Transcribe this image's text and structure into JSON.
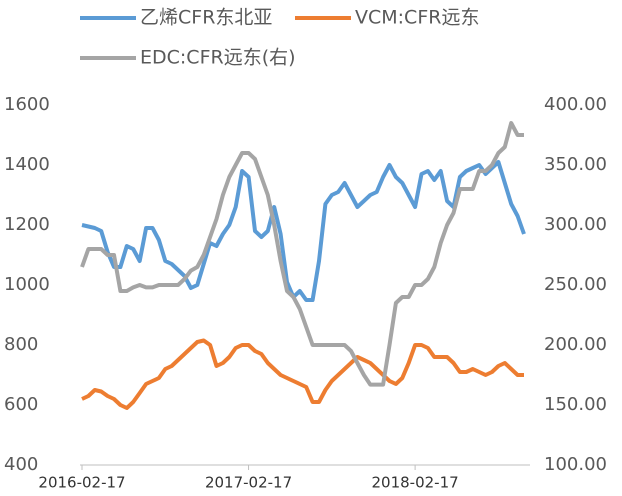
{
  "chart_data": {
    "type": "line",
    "categories": [
      "2016-02-17",
      null,
      null,
      null,
      null,
      null,
      null,
      null,
      null,
      null,
      null,
      null,
      null,
      null,
      null,
      null,
      null,
      null,
      null,
      null,
      null,
      null,
      null,
      null,
      null,
      null,
      "2017-02-17",
      null,
      null,
      null,
      null,
      null,
      null,
      null,
      null,
      null,
      null,
      null,
      null,
      null,
      null,
      null,
      null,
      null,
      null,
      null,
      null,
      null,
      null,
      null,
      null,
      null,
      "2018-02-17",
      null,
      null,
      null,
      null,
      null,
      null,
      null,
      null,
      null,
      null,
      null,
      null,
      null,
      null,
      null,
      null,
      null
    ],
    "series": [
      {
        "name": "乙烯CFR东北亚",
        "color": "#5b9bd5",
        "axis": "y",
        "values": [
          1200,
          1195,
          1190,
          1180,
          1110,
          1060,
          1060,
          1130,
          1120,
          1080,
          1190,
          1190,
          1150,
          1080,
          1070,
          1050,
          1030,
          990,
          1000,
          1070,
          1140,
          1130,
          1170,
          1200,
          1260,
          1380,
          1360,
          1180,
          1160,
          1180,
          1260,
          1170,
          1010,
          960,
          980,
          950,
          950,
          1080,
          1270,
          1300,
          1310,
          1340,
          1300,
          1260,
          1280,
          1300,
          1310,
          1360,
          1400,
          1360,
          1340,
          1300,
          1260,
          1370,
          1380,
          1350,
          1380,
          1280,
          1260,
          1360,
          1380,
          1390,
          1400,
          1370,
          1390,
          1410,
          1340,
          1270,
          1230,
          1170
        ]
      },
      {
        "name": "VCM:CFR远东",
        "color": "#ed7d31",
        "axis": "y",
        "values": [
          620,
          630,
          650,
          645,
          630,
          620,
          600,
          590,
          610,
          640,
          670,
          680,
          690,
          720,
          730,
          750,
          770,
          790,
          810,
          815,
          800,
          730,
          740,
          760,
          790,
          800,
          800,
          780,
          770,
          740,
          720,
          700,
          690,
          680,
          670,
          660,
          610,
          610,
          650,
          680,
          700,
          720,
          740,
          760,
          750,
          740,
          720,
          700,
          680,
          670,
          690,
          740,
          800,
          800,
          790,
          760,
          760,
          760,
          740,
          710,
          710,
          720,
          710,
          700,
          710,
          730,
          740,
          720,
          700,
          700
        ]
      },
      {
        "name": "EDC:CFR远东(右)",
        "color": "#a5a5a5",
        "axis": "y2",
        "values": [
          265,
          280,
          280,
          280,
          275,
          275,
          245,
          245,
          248,
          250,
          248,
          248,
          250,
          250,
          250,
          250,
          255,
          262,
          265,
          275,
          290,
          305,
          325,
          340,
          350,
          360,
          360,
          355,
          340,
          325,
          300,
          270,
          245,
          240,
          230,
          215,
          200,
          200,
          200,
          200,
          200,
          200,
          195,
          185,
          175,
          167,
          167,
          167,
          200,
          235,
          240,
          240,
          250,
          250,
          255,
          265,
          285,
          300,
          310,
          330,
          330,
          330,
          345,
          345,
          350,
          360,
          365,
          385,
          375,
          375
        ]
      }
    ],
    "ylim": [
      400,
      1600
    ],
    "yticks": [
      400,
      600,
      800,
      1000,
      1200,
      1400,
      1600
    ],
    "y2lim": [
      100,
      400
    ],
    "y2ticks": [
      {
        "value": 100,
        "label": "100.00"
      },
      {
        "value": 150,
        "label": "150.00"
      },
      {
        "value": 200,
        "label": "200.00"
      },
      {
        "value": 250,
        "label": "250.00"
      },
      {
        "value": 300,
        "label": "300.00"
      },
      {
        "value": 350,
        "label": "350.00"
      },
      {
        "value": 400,
        "label": "400.00"
      }
    ]
  }
}
